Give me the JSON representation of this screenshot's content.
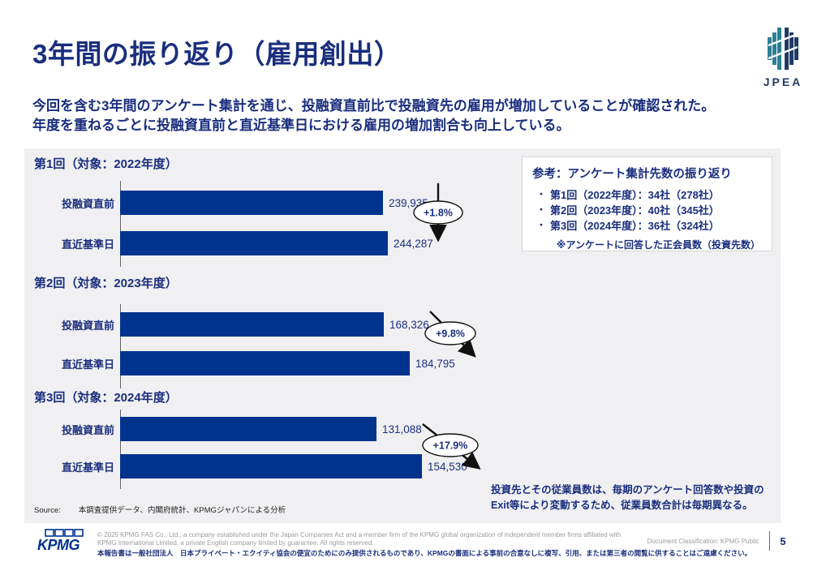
{
  "slide": {
    "title": "3年間の振り返り（雇用創出）",
    "subtitle_lines": [
      "今回を含む3年間のアンケート集計を通じ、投融資直前比で投融資先の雇用が増加していることが確認された。",
      "年度を重ねるごとに投融資直前と直近基準日における雇用の増加割合も向上している。"
    ]
  },
  "logos": {
    "jpea": "JPEA",
    "kpmg": "KPMG"
  },
  "charts": [
    {
      "title": "第1回（対象：2022年度）",
      "bars": [
        {
          "label": "投融資直前",
          "value": "239,935"
        },
        {
          "label": "直近基準日",
          "value": "244,287"
        }
      ],
      "change": "+1.8%"
    },
    {
      "title": "第2回（対象：2023年度）",
      "bars": [
        {
          "label": "投融資直前",
          "value": "168,326"
        },
        {
          "label": "直近基準日",
          "value": "184,795"
        }
      ],
      "change": "+9.8%"
    },
    {
      "title": "第3回（対象：2024年度）",
      "bars": [
        {
          "label": "投融資直前",
          "value": "131,088"
        },
        {
          "label": "直近基準日",
          "value": "154,530"
        }
      ],
      "change": "+17.9%"
    }
  ],
  "chart_data": [
    {
      "type": "bar",
      "orientation": "horizontal",
      "title": "第1回（対象：2022年度）",
      "categories": [
        "投融資直前",
        "直近基準日"
      ],
      "values": [
        239935,
        244287
      ],
      "value_labels": [
        "239,935",
        "244,287"
      ],
      "change_annotation": "+1.8%",
      "bar_color": "#00338D",
      "legend": "none",
      "grid": "off"
    },
    {
      "type": "bar",
      "orientation": "horizontal",
      "title": "第2回（対象：2023年度）",
      "categories": [
        "投融資直前",
        "直近基準日"
      ],
      "values": [
        168326,
        184795
      ],
      "value_labels": [
        "168,326",
        "184,795"
      ],
      "change_annotation": "+9.8%",
      "bar_color": "#00338D",
      "legend": "none",
      "grid": "off"
    },
    {
      "type": "bar",
      "orientation": "horizontal",
      "title": "第3回（対象：2024年度）",
      "categories": [
        "投融資直前",
        "直近基準日"
      ],
      "values": [
        131088,
        154530
      ],
      "value_labels": [
        "131,088",
        "154,530"
      ],
      "change_annotation": "+17.9%",
      "bar_color": "#00338D",
      "legend": "none",
      "grid": "off"
    }
  ],
  "reference_box": {
    "title": "参考：アンケート集計先数の振り返り",
    "bullet": "・",
    "items": [
      "第1回（2022年度）：34社（278社）",
      "第2回（2023年度）：40社（345社）",
      "第3回（2024年度）：36社（324社）"
    ],
    "note": "※アンケートに回答した正会員数（投資先数）"
  },
  "footnote": "投資先とその従業員数は、毎期のアンケート回答数や投資のExit等により変動するため、従業員数合計は毎期異なる。",
  "source": {
    "label": "Source:",
    "text": "本調査提供データ、内閣府統計、KPMGジャパンによる分析"
  },
  "footer": {
    "copyright": "© 2025 KPMG FAS Co., Ltd., a company established under the Japan Companies Act and a member firm of the KPMG global organization of independent member firms affiliated with KPMG International Limited, a private English company limited by guarantee. All rights reserved.",
    "disclaimer": "本報告書は一般社団法人　日本プライベート・エクイティ協会の便宜のためにのみ提供されるものであり、KPMGの書面による事前の合意なしに複写、引用、または第三者の閲覧に供することはご遠慮ください。",
    "classification": "Document Classification: KPMG Public",
    "page": "5"
  },
  "colors": {
    "navy": "#1A2E7D",
    "kpmg_blue": "#00338D",
    "panel_gray": "#F0F0F2",
    "jpea_teal": "#2D7F93",
    "jpea_navy": "#203A64",
    "footer_gray": "#9C9C9C"
  }
}
